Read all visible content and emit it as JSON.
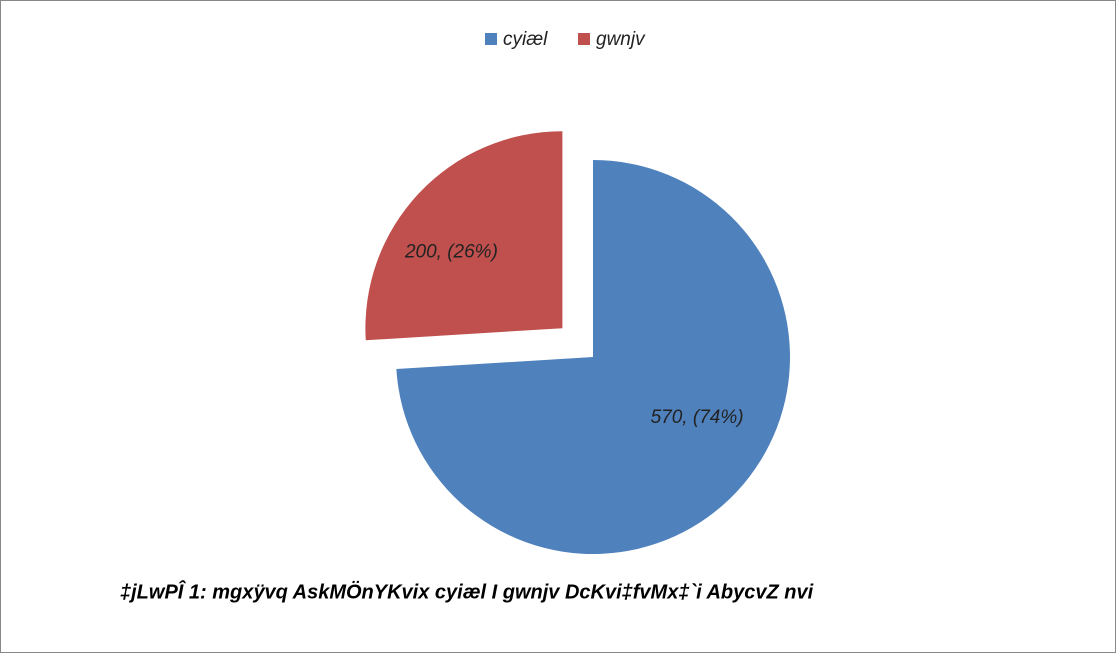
{
  "chart_data": {
    "type": "pie",
    "categories": [
      "cyiæl",
      "gwnjv"
    ],
    "values": [
      570,
      200
    ],
    "value_labels": [
      "570, (74%)",
      "200, (26%)"
    ],
    "colors": [
      "#4f81bd",
      "#c0504d"
    ],
    "caption": "‡jLwPÎ 1: mgxÿvq AskMÖnYKvix cyiæl I gwnjv DcKvi‡fvMx‡`i AbycvZ nvi"
  }
}
